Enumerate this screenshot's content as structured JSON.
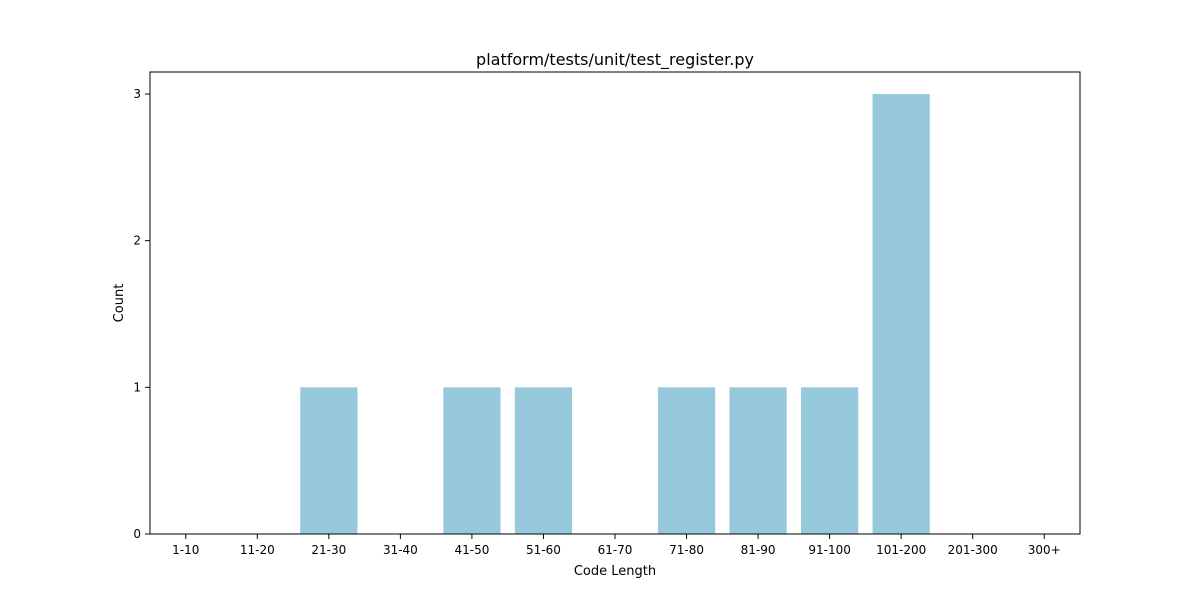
{
  "chart_data": {
    "type": "bar",
    "title": "platform/tests/unit/test_register.py",
    "xlabel": "Code Length",
    "ylabel": "Count",
    "categories": [
      "1-10",
      "11-20",
      "21-30",
      "31-40",
      "41-50",
      "51-60",
      "61-70",
      "71-80",
      "81-90",
      "91-100",
      "101-200",
      "201-300",
      "300+"
    ],
    "values": [
      0,
      0,
      1,
      0,
      1,
      1,
      0,
      1,
      1,
      1,
      3,
      0,
      0
    ],
    "ylim": [
      0,
      3.15
    ],
    "yticks": [
      0,
      1,
      2,
      3
    ],
    "grid": false,
    "bar_color": "#96c9dc"
  }
}
